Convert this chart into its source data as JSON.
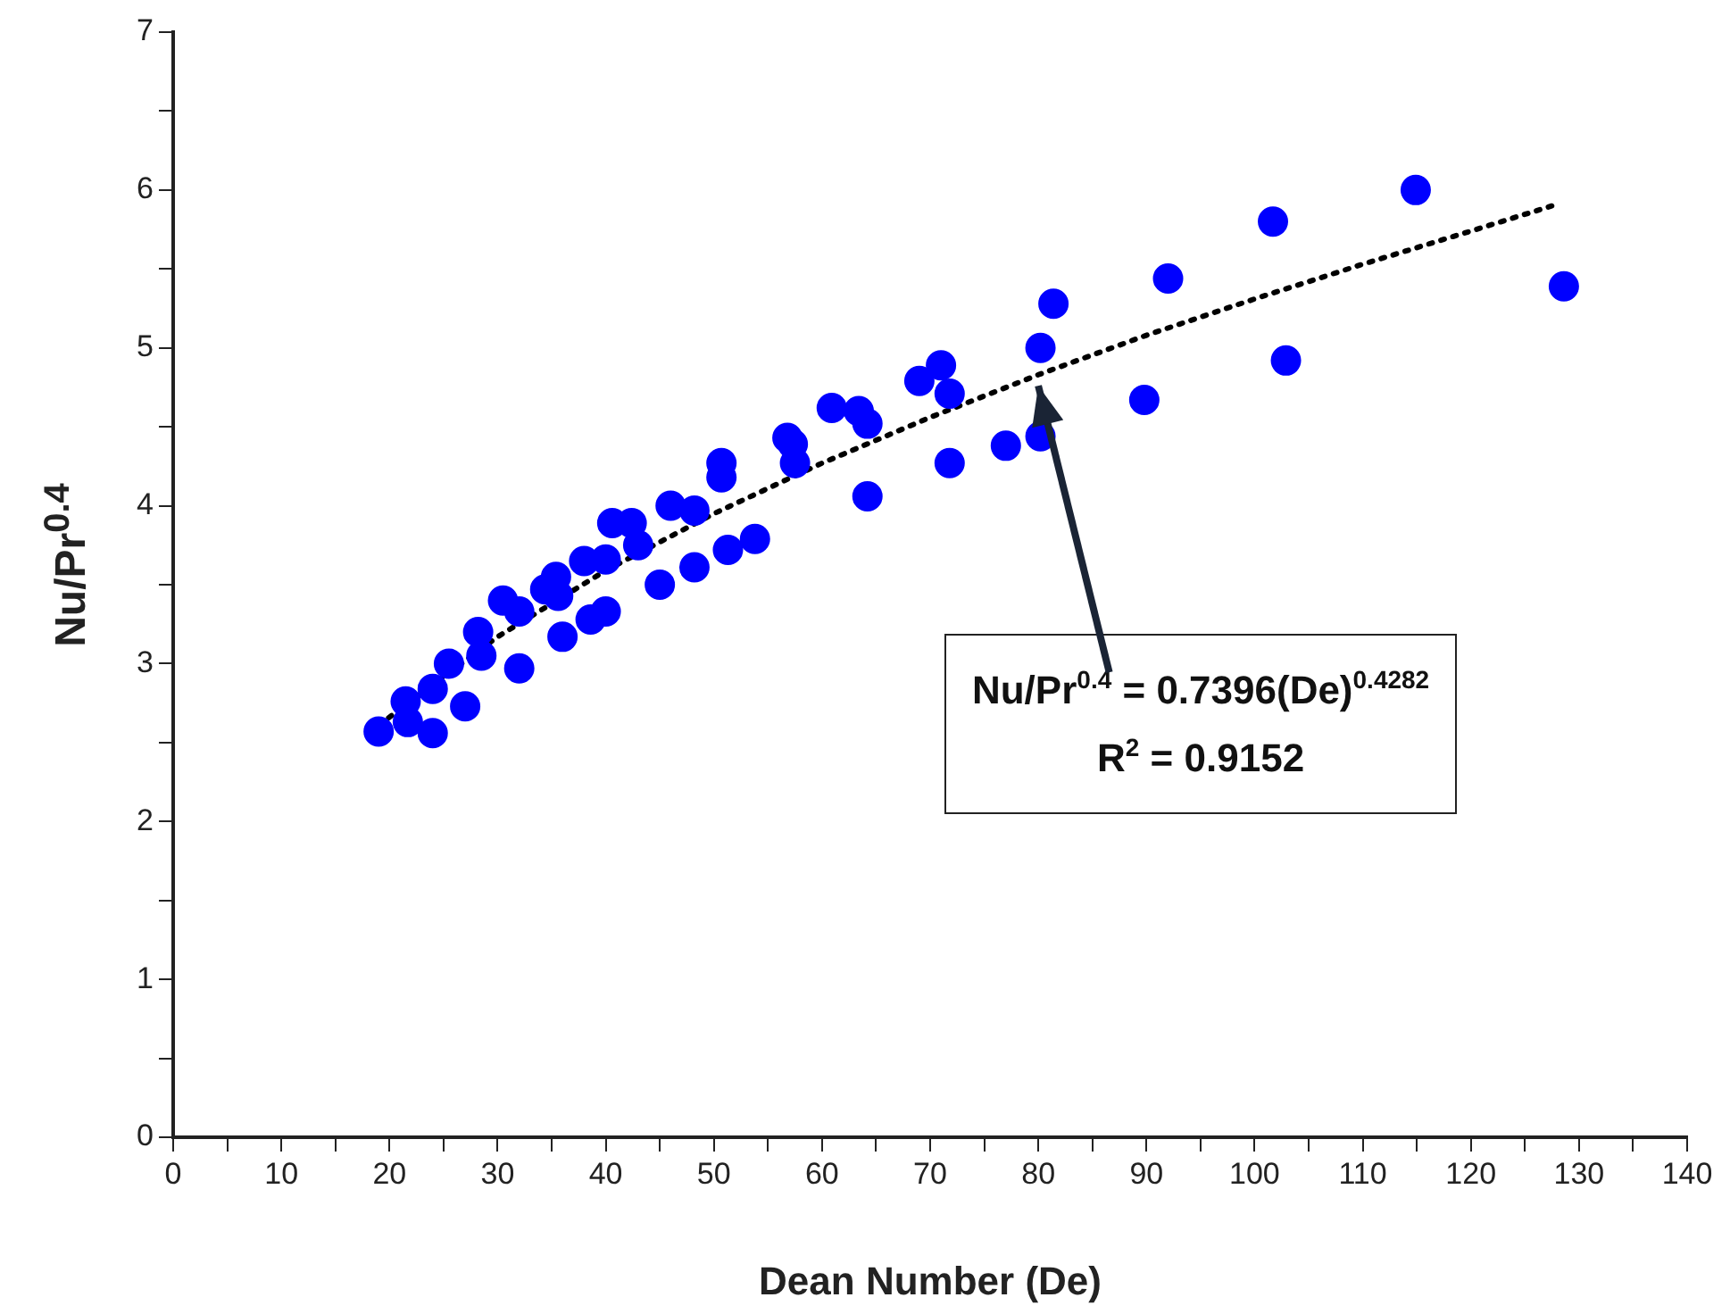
{
  "chart_data": {
    "type": "scatter",
    "xlabel": "Dean Number (De)",
    "ylabel": "Nu/Pr$^{0.4}$",
    "xlim": [
      0,
      140
    ],
    "ylim": [
      0,
      7
    ],
    "xticks": [
      0,
      {
        "value": 5,
        "label": null
      },
      10,
      {
        "value": 15,
        "label": null
      },
      20,
      {
        "value": 25,
        "label": null
      },
      30,
      {
        "value": 35,
        "label": null
      },
      40,
      {
        "value": 45,
        "label": null
      },
      50,
      {
        "value": 55,
        "label": null
      },
      60,
      {
        "value": 65,
        "label": null
      },
      70,
      {
        "value": 75,
        "label": null
      },
      80,
      {
        "value": 85,
        "label": null
      },
      90,
      {
        "value": 95,
        "label": null
      },
      100,
      {
        "value": 105,
        "label": null
      },
      110,
      {
        "value": 115,
        "label": null
      },
      120,
      {
        "value": 125,
        "label": null
      },
      130,
      {
        "value": 135,
        "label": null
      },
      140
    ],
    "yticks": [
      0,
      {
        "value": 0.5,
        "label": null
      },
      1,
      {
        "value": 1.5,
        "label": null
      },
      2,
      {
        "value": 2.5,
        "label": null
      },
      3,
      {
        "value": 3.5,
        "label": null
      },
      4,
      {
        "value": 4.5,
        "label": null
      },
      5,
      {
        "value": 5.5,
        "label": null
      },
      6,
      {
        "value": 6.5,
        "label": null
      },
      7
    ],
    "grid": false,
    "legend": false,
    "marker": "circle",
    "series": [
      {
        "type": "scatter",
        "color": "#0000ff",
        "x": [
          19.0,
          21.5,
          21.7,
          24.0,
          24.0,
          25.5,
          27.0,
          28.2,
          28.5,
          30.5,
          32.0,
          32.0,
          34.4,
          35.4,
          35.6,
          36.0,
          38.0,
          38.6,
          40.0,
          40.0,
          40.6,
          42.4,
          43.0,
          45.0,
          46.0,
          48.2,
          48.2,
          50.7,
          50.7,
          51.3,
          53.8,
          56.8,
          57.3,
          57.5,
          60.9,
          63.4,
          64.2,
          64.2,
          69.0,
          71.0,
          71.8,
          71.8,
          77.0,
          80.2,
          80.2,
          81.4,
          89.8,
          92.0,
          101.7,
          102.9,
          114.9,
          128.6
        ],
        "values": [
          2.57,
          2.76,
          2.63,
          2.56,
          2.84,
          3.0,
          2.73,
          3.2,
          3.05,
          3.4,
          3.33,
          2.97,
          3.47,
          3.55,
          3.43,
          3.17,
          3.65,
          3.28,
          3.33,
          3.66,
          3.89,
          3.89,
          3.75,
          3.5,
          4.0,
          3.97,
          3.61,
          4.27,
          4.18,
          3.72,
          3.79,
          4.43,
          4.39,
          4.27,
          4.62,
          4.6,
          4.52,
          4.06,
          4.79,
          4.89,
          4.71,
          4.27,
          4.38,
          4.44,
          5.0,
          5.28,
          4.67,
          5.44,
          5.8,
          4.92,
          6.0,
          5.39
        ]
      },
      {
        "type": "line",
        "color": "#000000",
        "line_style": "dotted",
        "marker": "none",
        "x": [
          19,
          30,
          40,
          50,
          60,
          70,
          80,
          90,
          100,
          110,
          120,
          128
        ],
        "values": [
          2.61,
          3.17,
          3.59,
          3.95,
          4.27,
          4.56,
          4.83,
          5.08,
          5.31,
          5.53,
          5.74,
          5.91
        ]
      }
    ],
    "annotations": [
      {
        "text": "Nu/Pr$^{0.4}$ = 0.7396(De)$^{0.4282}$",
        "x": 80,
        "y": 4.76
      },
      "R$^{2}$ = 0.9152"
    ]
  }
}
